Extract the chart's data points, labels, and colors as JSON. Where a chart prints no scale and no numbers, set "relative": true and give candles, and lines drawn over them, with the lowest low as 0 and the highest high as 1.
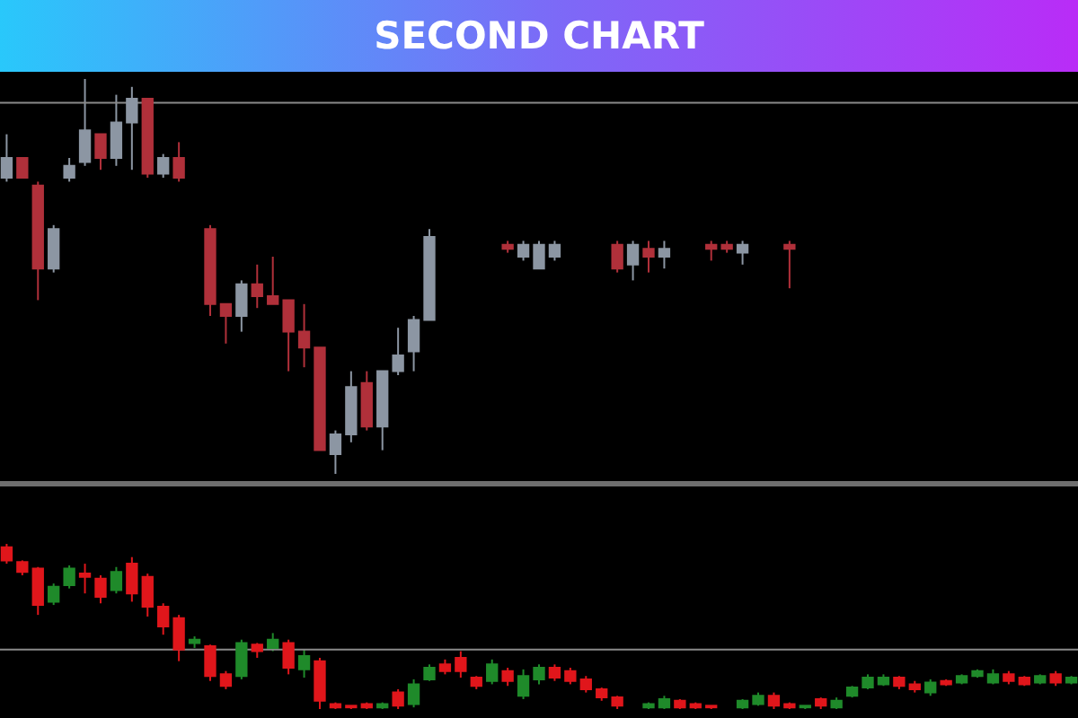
{
  "chart_data": [
    {
      "type": "candlestick",
      "title": "SECOND CHART",
      "relative": true,
      "categories": [
        null,
        null,
        null,
        null,
        null,
        null,
        null,
        null,
        null,
        null,
        null,
        null,
        null,
        null,
        null,
        null,
        null,
        null,
        null,
        null,
        null,
        null,
        null,
        null,
        null,
        null,
        null,
        null,
        null,
        null,
        null,
        null,
        null,
        null,
        null,
        null,
        null,
        null,
        null,
        null,
        null,
        null,
        null,
        null,
        null,
        null,
        null,
        null,
        null,
        null,
        null,
        null,
        null,
        null,
        null,
        null,
        null,
        null,
        null,
        null,
        null,
        null,
        null,
        null,
        null,
        null,
        null,
        null,
        null
      ],
      "ohlc": [
        [
          0.75,
          0.86,
          0.74,
          0.8
        ],
        [
          0.8,
          0.8,
          0.75,
          0.75
        ],
        [
          0.73,
          0.74,
          0.44,
          0.52
        ],
        [
          0.52,
          0.63,
          0.51,
          0.62
        ],
        [
          0.75,
          0.8,
          0.74,
          0.78
        ],
        [
          0.79,
          1,
          0.78,
          0.87
        ],
        [
          0.86,
          0.86,
          0.77,
          0.8
        ],
        [
          0.8,
          0.96,
          0.78,
          0.89
        ],
        [
          0.89,
          0.98,
          0.77,
          0.95
        ],
        [
          0.95,
          0.95,
          0.75,
          0.76
        ],
        [
          0.76,
          0.81,
          0.75,
          0.8
        ],
        [
          0.8,
          0.84,
          0.74,
          0.75
        ],
        null,
        [
          0.62,
          0.63,
          0.4,
          0.43
        ],
        [
          0.43,
          0.43,
          0.33,
          0.4
        ],
        [
          0.4,
          0.49,
          0.36,
          0.48
        ],
        [
          0.48,
          0.53,
          0.42,
          0.45
        ],
        [
          0.45,
          0.55,
          0.43,
          0.43
        ],
        [
          0.44,
          0.44,
          0.26,
          0.36
        ],
        [
          0.36,
          0.43,
          0.27,
          0.32
        ],
        [
          0.32,
          0.32,
          0.06,
          0.06
        ],
        [
          0.05,
          0.11,
          0,
          0.1
        ],
        [
          0.1,
          0.26,
          0.08,
          0.22
        ],
        [
          0.23,
          0.26,
          0.11,
          0.12
        ],
        [
          0.12,
          0.26,
          0.06,
          0.26
        ],
        [
          0.26,
          0.37,
          0.25,
          0.3
        ],
        [
          0.31,
          0.4,
          0.26,
          0.39
        ],
        [
          0.39,
          0.62,
          0.39,
          0.6
        ],
        null,
        null,
        null,
        null,
        [
          0.58,
          0.59,
          0.56,
          0.57
        ],
        [
          0.55,
          0.59,
          0.54,
          0.58
        ],
        [
          0.52,
          0.59,
          0.52,
          0.58
        ],
        [
          0.55,
          0.59,
          0.54,
          0.58
        ],
        null,
        null,
        null,
        [
          0.58,
          0.59,
          0.51,
          0.52
        ],
        [
          0.53,
          0.59,
          0.49,
          0.58
        ],
        [
          0.57,
          0.59,
          0.51,
          0.55
        ],
        [
          0.55,
          0.59,
          0.52,
          0.57
        ],
        null,
        null,
        [
          0.58,
          0.59,
          0.54,
          0.57
        ],
        [
          0.58,
          0.59,
          0.56,
          0.57
        ],
        [
          0.56,
          0.59,
          0.53,
          0.58
        ],
        null,
        null,
        [
          0.58,
          0.59,
          0.47,
          0.57
        ],
        null,
        null,
        null,
        null,
        null,
        null,
        null,
        null,
        null,
        null,
        null,
        null,
        null,
        null,
        null,
        null,
        null,
        null
      ],
      "colors": [
        "#8c96a3",
        "#b0303a",
        "#b0303a",
        "#8c96a3",
        "#8c96a3",
        "#8c96a3",
        "#b0303a",
        "#8c96a3",
        "#8c96a3",
        "#b0303a",
        "#8c96a3",
        "#b0303a",
        null,
        "#b0303a",
        "#b0303a",
        "#8c96a3",
        "#b0303a",
        "#b0303a",
        "#b0303a",
        "#b0303a",
        "#b0303a",
        "#8c96a3",
        "#8c96a3",
        "#b0303a",
        "#8c96a3",
        "#8c96a3",
        "#8c96a3",
        "#8c96a3",
        null,
        null,
        null,
        null,
        "#b0303a",
        "#8c96a3",
        "#8c96a3",
        "#8c96a3",
        null,
        null,
        null,
        "#b0303a",
        "#8c96a3",
        "#b0303a",
        "#8c96a3",
        null,
        null,
        "#b0303a",
        "#b0303a",
        "#8c96a3",
        null,
        null,
        "#b0303a",
        null,
        null,
        null,
        null,
        null,
        null,
        null,
        null,
        null,
        null,
        null,
        null,
        null,
        null,
        null,
        null,
        null,
        null
      ],
      "ref_lines": [
        {
          "axis": "y",
          "value": 0.94,
          "color": "#8a8a8a"
        }
      ]
    },
    {
      "type": "candlestick",
      "relative": true,
      "categories": [
        null,
        null,
        null,
        null,
        null,
        null,
        null,
        null,
        null,
        null,
        null,
        null,
        null,
        null,
        null,
        null,
        null,
        null,
        null,
        null,
        null,
        null,
        null,
        null,
        null,
        null,
        null,
        null,
        null,
        null,
        null,
        null,
        null,
        null,
        null,
        null,
        null,
        null,
        null,
        null,
        null,
        null,
        null,
        null,
        null,
        null,
        null,
        null,
        null,
        null,
        null,
        null,
        null,
        null,
        null,
        null,
        null,
        null,
        null,
        null,
        null,
        null,
        null,
        null,
        null,
        null,
        null,
        null,
        null
      ],
      "ohlc": [
        [
          0.98,
          1,
          0.88,
          0.9
        ],
        [
          0.89,
          0.9,
          0.81,
          0.83
        ],
        [
          0.85,
          0.86,
          0.57,
          0.63
        ],
        [
          0.65,
          0.76,
          0.63,
          0.74
        ],
        [
          0.75,
          0.87,
          0.73,
          0.85
        ],
        [
          0.82,
          0.88,
          0.7,
          0.8
        ],
        [
          0.79,
          0.81,
          0.64,
          0.68
        ],
        [
          0.72,
          0.86,
          0.7,
          0.83
        ],
        [
          0.88,
          0.92,
          0.65,
          0.7
        ],
        [
          0.8,
          0.82,
          0.56,
          0.62
        ],
        [
          0.62,
          0.64,
          0.45,
          0.5
        ],
        [
          0.55,
          0.57,
          0.29,
          0.36
        ],
        [
          0.4,
          0.44,
          0.37,
          0.42
        ],
        [
          0.38,
          0.39,
          0.17,
          0.2
        ],
        [
          0.21,
          0.23,
          0.12,
          0.14
        ],
        [
          0.2,
          0.42,
          0.18,
          0.4
        ],
        [
          0.39,
          0.4,
          0.31,
          0.35
        ],
        [
          0.37,
          0.46,
          0.35,
          0.42
        ],
        [
          0.4,
          0.42,
          0.21,
          0.25
        ],
        [
          0.24,
          0.36,
          0.19,
          0.32
        ],
        [
          0.29,
          0.31,
          0,
          0.05
        ],
        [
          0.03,
          0.04,
          0,
          0.01
        ],
        [
          0.02,
          0.02,
          0,
          0.01
        ],
        [
          0.03,
          0.04,
          0,
          0.01
        ],
        [
          0.01,
          0.04,
          0,
          0.03
        ],
        [
          0.1,
          0.12,
          0,
          0.02
        ],
        [
          0.03,
          0.18,
          0.01,
          0.15
        ],
        [
          0.18,
          0.27,
          0.17,
          0.25
        ],
        [
          0.27,
          0.3,
          0.21,
          0.23
        ],
        [
          0.31,
          0.35,
          0.19,
          0.23
        ],
        [
          0.19,
          0.2,
          0.12,
          0.14
        ],
        [
          0.17,
          0.3,
          0.15,
          0.27
        ],
        [
          0.23,
          0.25,
          0.14,
          0.17
        ],
        [
          0.08,
          0.24,
          0.06,
          0.2
        ],
        [
          0.18,
          0.27,
          0.15,
          0.25
        ],
        [
          0.25,
          0.27,
          0.17,
          0.19
        ],
        [
          0.23,
          0.25,
          0.15,
          0.17
        ],
        [
          0.18,
          0.2,
          0.1,
          0.12
        ],
        [
          0.12,
          0.13,
          0.05,
          0.07
        ],
        [
          0.07,
          0.08,
          0,
          0.02
        ],
        null,
        [
          0.01,
          0.04,
          0,
          0.03
        ],
        [
          0.01,
          0.08,
          0,
          0.06
        ],
        [
          0.05,
          0.06,
          0,
          0.01
        ],
        [
          0.03,
          0.04,
          0,
          0.01
        ],
        [
          0.02,
          0.02,
          0,
          0.01
        ],
        null,
        [
          0.01,
          0.06,
          0,
          0.05
        ],
        [
          0.03,
          0.1,
          0.02,
          0.08
        ],
        [
          0.08,
          0.1,
          0,
          0.02
        ],
        [
          0.03,
          0.04,
          0,
          0.01
        ],
        [
          0.01,
          0.02,
          0,
          0.02
        ],
        [
          0.06,
          0.07,
          0,
          0.02
        ],
        [
          0.01,
          0.07,
          0,
          0.05
        ],
        [
          0.08,
          0.14,
          0.07,
          0.13
        ],
        [
          0.13,
          0.21,
          0.12,
          0.19
        ],
        [
          0.15,
          0.21,
          0.14,
          0.19
        ],
        [
          0.19,
          0.2,
          0.12,
          0.14
        ],
        [
          0.15,
          0.17,
          0.1,
          0.12
        ],
        [
          0.1,
          0.18,
          0.08,
          0.16
        ],
        [
          0.17,
          0.18,
          0.14,
          0.15
        ],
        [
          0.16,
          0.21,
          0.15,
          0.2
        ],
        [
          0.2,
          0.24,
          0.19,
          0.23
        ],
        [
          0.16,
          0.24,
          0.15,
          0.21
        ],
        [
          0.21,
          0.23,
          0.15,
          0.17
        ],
        [
          0.19,
          0.2,
          0.14,
          0.15
        ],
        [
          0.16,
          0.21,
          0.15,
          0.2
        ],
        [
          0.21,
          0.23,
          0.14,
          0.16
        ],
        [
          0.16,
          0.2,
          0.15,
          0.19
        ]
      ],
      "colors": [
        "#e0161b",
        "#e0161b",
        "#e0161b",
        "#1f8a2a",
        "#1f8a2a",
        "#e0161b",
        "#e0161b",
        "#1f8a2a",
        "#e0161b",
        "#e0161b",
        "#e0161b",
        "#e0161b",
        "#1f8a2a",
        "#e0161b",
        "#e0161b",
        "#1f8a2a",
        "#e0161b",
        "#1f8a2a",
        "#e0161b",
        "#1f8a2a",
        "#e0161b",
        "#e0161b",
        "#e0161b",
        "#e0161b",
        "#1f8a2a",
        "#e0161b",
        "#1f8a2a",
        "#1f8a2a",
        "#e0161b",
        "#e0161b",
        "#e0161b",
        "#1f8a2a",
        "#e0161b",
        "#1f8a2a",
        "#1f8a2a",
        "#e0161b",
        "#e0161b",
        "#e0161b",
        "#e0161b",
        "#e0161b",
        null,
        "#1f8a2a",
        "#1f8a2a",
        "#e0161b",
        "#e0161b",
        "#e0161b",
        null,
        "#1f8a2a",
        "#1f8a2a",
        "#e0161b",
        "#e0161b",
        "#1f8a2a",
        "#e0161b",
        "#1f8a2a",
        "#1f8a2a",
        "#1f8a2a",
        "#1f8a2a",
        "#e0161b",
        "#e0161b",
        "#1f8a2a",
        "#e0161b",
        "#1f8a2a",
        "#1f8a2a",
        "#1f8a2a",
        "#e0161b",
        "#e0161b",
        "#1f8a2a",
        "#e0161b",
        "#1f8a2a"
      ],
      "ref_lines": [
        {
          "axis": "y",
          "value": 0.36,
          "color": "#8a8a8a"
        }
      ]
    }
  ]
}
